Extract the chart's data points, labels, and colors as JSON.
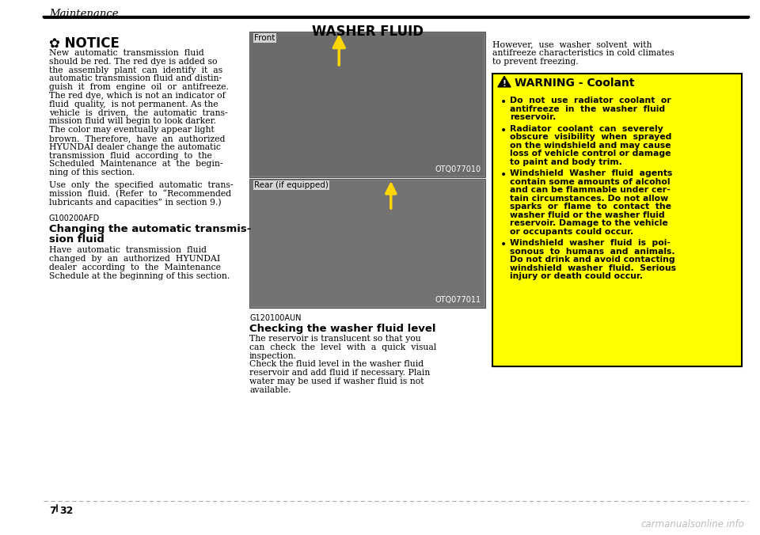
{
  "page_bg": "#ffffff",
  "header_text": "Maintenance",
  "page_number_left": "7",
  "page_number_right": "32",
  "watermark": "carmanualsonline.info",
  "notice_symbol": "✿ NOTICE",
  "notice_body_lines": [
    "New  automatic  transmission  fluid",
    "should be red. The red dye is added so",
    "the  assembly  plant  can  identify  it  as",
    "automatic transmission fluid and distin-",
    "guish  it  from  engine  oil  or  antifreeze.",
    "The red dye, which is not an indicator of",
    "fluid  quality,  is not permanent. As the",
    "vehicle  is  driven,  the  automatic  trans-",
    "mission fluid will begin to look darker.",
    "The color may eventually appear light",
    "brown.  Therefore,  have  an  authorized",
    "HYUNDAI dealer change the automatic",
    "transmission  fluid  according  to  the",
    "Scheduled  Maintenance  at  the  begin-",
    "ning of this section."
  ],
  "notice_body2_lines": [
    "Use  only  the  specified  automatic  trans-",
    "mission  fluid.  (Refer  to  “Recommended",
    "lubricants and capacities” in section 9.)"
  ],
  "section_code1": "G100200AFD",
  "section_title1_lines": [
    "Changing the automatic transmis-",
    "sion fluid"
  ],
  "section_body1_lines": [
    "Have  automatic  transmission  fluid",
    "changed  by  an  authorized  HYUNDAI",
    "dealer  according  to  the  Maintenance",
    "Schedule at the beginning of this section."
  ],
  "center_title": "WASHER FLUID",
  "img1_label": "Front",
  "img1_code": "OTQ077010",
  "img2_label": "Rear (if equipped)",
  "img2_code": "OTQ077011",
  "img_bg1": "#888888",
  "img_bg2": "#909090",
  "section_code2": "G120100AUN",
  "section_title2": "Checking the washer fluid level",
  "section_body2_lines": [
    "The reservoir is translucent so that you",
    "can  check  the  level  with  a  quick  visual",
    "inspection.",
    "Check the fluid level in the washer fluid",
    "reservoir and add fluid if necessary. Plain",
    "water may be used if washer fluid is not",
    "available."
  ],
  "right_para_lines": [
    "However,  use  washer  solvent  with",
    "antifreeze characteristics in cold climates",
    "to prevent freezing."
  ],
  "warning_bg": "#FFFF00",
  "warning_border": "#000000",
  "warning_title": "WARNING - Coolant",
  "warning_bullet1_lines": [
    "Do  not  use  radiator  coolant  or",
    "antifreeze  in  the  washer  fluid",
    "reservoir."
  ],
  "warning_bullet2_lines": [
    "Radiator  coolant  can  severely",
    "obscure  visibility  when  sprayed",
    "on the windshield and may cause",
    "loss of vehicle control or damage",
    "to paint and body trim."
  ],
  "warning_bullet3_lines": [
    "Windshield  Washer  fluid  agents",
    "contain some amounts of alcohol",
    "and can be flammable under cer-",
    "tain circumstances. Do not allow",
    "sparks  or  flame  to  contact  the",
    "washer fluid or the washer fluid",
    "reservoir. Damage to the vehicle",
    "or occupants could occur."
  ],
  "warning_bullet4_lines": [
    "Windshield  washer  fluid  is  poi-",
    "sonous  to  humans  and  animals.",
    "Do not drink and avoid contacting",
    "windshield  washer  fluid.  Serious",
    "injury or death could occur."
  ]
}
